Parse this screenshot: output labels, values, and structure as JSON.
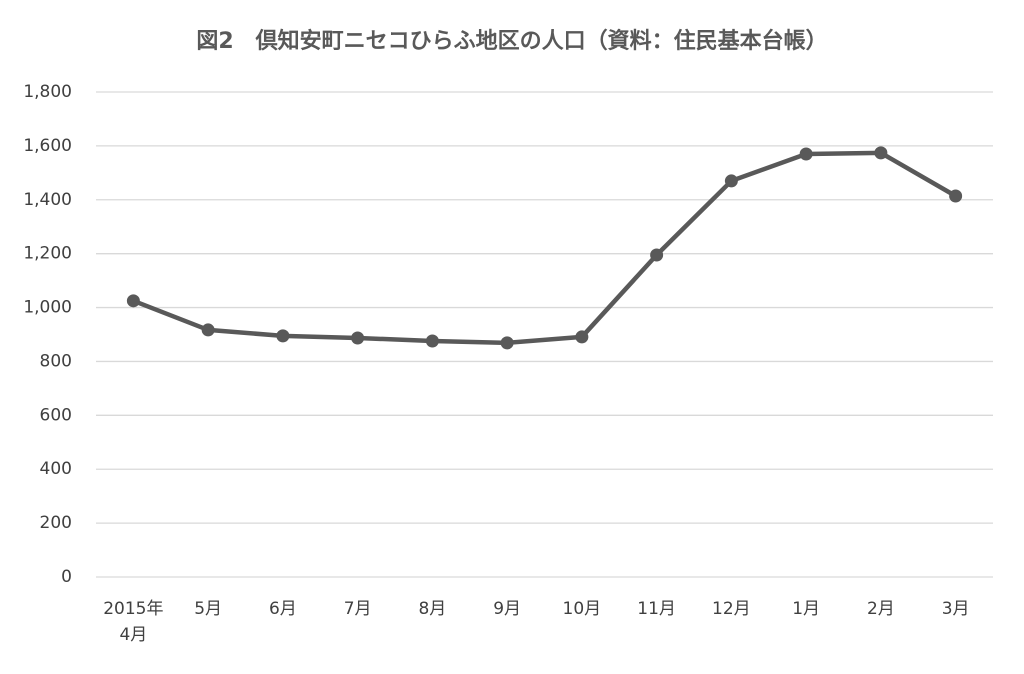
{
  "chart_data": {
    "type": "line",
    "title": "図2　倶知安町ニセコひらふ地区の人口（資料：住民基本台帳）",
    "categories": [
      "2015年\n4月",
      "5月",
      "6月",
      "7月",
      "8月",
      "9月",
      "10月",
      "11月",
      "12月",
      "1月",
      "2月",
      "3月"
    ],
    "series": [
      {
        "color": "#595959",
        "values": [
          1025,
          917,
          895,
          887,
          876,
          869,
          891,
          1195,
          1470,
          1570,
          1574,
          1414
        ]
      }
    ],
    "ylim": [
      0,
      1800
    ],
    "yticks": [
      0,
      200,
      400,
      600,
      800,
      {
        "value": 1000,
        "label": "1,000"
      },
      {
        "value": 1200,
        "label": "1,200"
      },
      {
        "value": 1400,
        "label": "1,400"
      },
      {
        "value": 1600,
        "label": "1,600"
      },
      {
        "value": 1800,
        "label": "1,800"
      }
    ],
    "grid": true
  }
}
